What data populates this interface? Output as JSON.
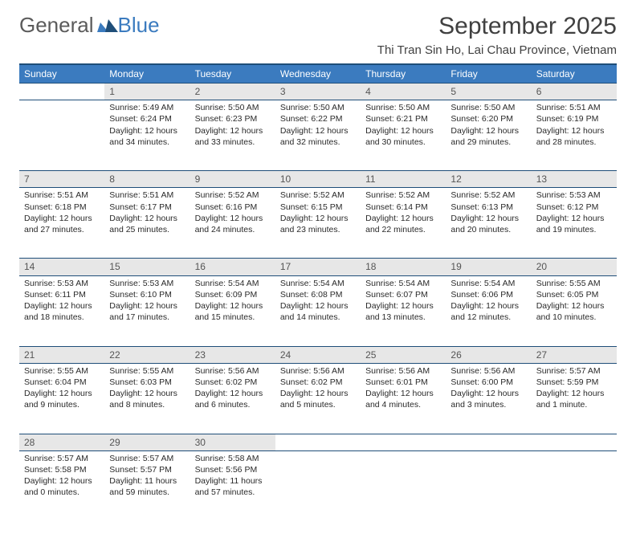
{
  "logo": {
    "part1": "General",
    "part2": "Blue"
  },
  "title": "September 2025",
  "location": "Thi Tran Sin Ho, Lai Chau Province, Vietnam",
  "colors": {
    "header_bg": "#3b7bbf",
    "header_border": "#1f4e79",
    "daynum_bg": "#e7e7e7",
    "text": "#2a2a2a"
  },
  "daysOfWeek": [
    "Sunday",
    "Monday",
    "Tuesday",
    "Wednesday",
    "Thursday",
    "Friday",
    "Saturday"
  ],
  "weeks": [
    {
      "nums": [
        "",
        "1",
        "2",
        "3",
        "4",
        "5",
        "6"
      ],
      "cells": [
        "",
        "Sunrise: 5:49 AM\nSunset: 6:24 PM\nDaylight: 12 hours and 34 minutes.",
        "Sunrise: 5:50 AM\nSunset: 6:23 PM\nDaylight: 12 hours and 33 minutes.",
        "Sunrise: 5:50 AM\nSunset: 6:22 PM\nDaylight: 12 hours and 32 minutes.",
        "Sunrise: 5:50 AM\nSunset: 6:21 PM\nDaylight: 12 hours and 30 minutes.",
        "Sunrise: 5:50 AM\nSunset: 6:20 PM\nDaylight: 12 hours and 29 minutes.",
        "Sunrise: 5:51 AM\nSunset: 6:19 PM\nDaylight: 12 hours and 28 minutes."
      ]
    },
    {
      "nums": [
        "7",
        "8",
        "9",
        "10",
        "11",
        "12",
        "13"
      ],
      "cells": [
        "Sunrise: 5:51 AM\nSunset: 6:18 PM\nDaylight: 12 hours and 27 minutes.",
        "Sunrise: 5:51 AM\nSunset: 6:17 PM\nDaylight: 12 hours and 25 minutes.",
        "Sunrise: 5:52 AM\nSunset: 6:16 PM\nDaylight: 12 hours and 24 minutes.",
        "Sunrise: 5:52 AM\nSunset: 6:15 PM\nDaylight: 12 hours and 23 minutes.",
        "Sunrise: 5:52 AM\nSunset: 6:14 PM\nDaylight: 12 hours and 22 minutes.",
        "Sunrise: 5:52 AM\nSunset: 6:13 PM\nDaylight: 12 hours and 20 minutes.",
        "Sunrise: 5:53 AM\nSunset: 6:12 PM\nDaylight: 12 hours and 19 minutes."
      ]
    },
    {
      "nums": [
        "14",
        "15",
        "16",
        "17",
        "18",
        "19",
        "20"
      ],
      "cells": [
        "Sunrise: 5:53 AM\nSunset: 6:11 PM\nDaylight: 12 hours and 18 minutes.",
        "Sunrise: 5:53 AM\nSunset: 6:10 PM\nDaylight: 12 hours and 17 minutes.",
        "Sunrise: 5:54 AM\nSunset: 6:09 PM\nDaylight: 12 hours and 15 minutes.",
        "Sunrise: 5:54 AM\nSunset: 6:08 PM\nDaylight: 12 hours and 14 minutes.",
        "Sunrise: 5:54 AM\nSunset: 6:07 PM\nDaylight: 12 hours and 13 minutes.",
        "Sunrise: 5:54 AM\nSunset: 6:06 PM\nDaylight: 12 hours and 12 minutes.",
        "Sunrise: 5:55 AM\nSunset: 6:05 PM\nDaylight: 12 hours and 10 minutes."
      ]
    },
    {
      "nums": [
        "21",
        "22",
        "23",
        "24",
        "25",
        "26",
        "27"
      ],
      "cells": [
        "Sunrise: 5:55 AM\nSunset: 6:04 PM\nDaylight: 12 hours and 9 minutes.",
        "Sunrise: 5:55 AM\nSunset: 6:03 PM\nDaylight: 12 hours and 8 minutes.",
        "Sunrise: 5:56 AM\nSunset: 6:02 PM\nDaylight: 12 hours and 6 minutes.",
        "Sunrise: 5:56 AM\nSunset: 6:02 PM\nDaylight: 12 hours and 5 minutes.",
        "Sunrise: 5:56 AM\nSunset: 6:01 PM\nDaylight: 12 hours and 4 minutes.",
        "Sunrise: 5:56 AM\nSunset: 6:00 PM\nDaylight: 12 hours and 3 minutes.",
        "Sunrise: 5:57 AM\nSunset: 5:59 PM\nDaylight: 12 hours and 1 minute."
      ]
    },
    {
      "nums": [
        "28",
        "29",
        "30",
        "",
        "",
        "",
        ""
      ],
      "cells": [
        "Sunrise: 5:57 AM\nSunset: 5:58 PM\nDaylight: 12 hours and 0 minutes.",
        "Sunrise: 5:57 AM\nSunset: 5:57 PM\nDaylight: 11 hours and 59 minutes.",
        "Sunrise: 5:58 AM\nSunset: 5:56 PM\nDaylight: 11 hours and 57 minutes.",
        "",
        "",
        "",
        ""
      ]
    }
  ]
}
